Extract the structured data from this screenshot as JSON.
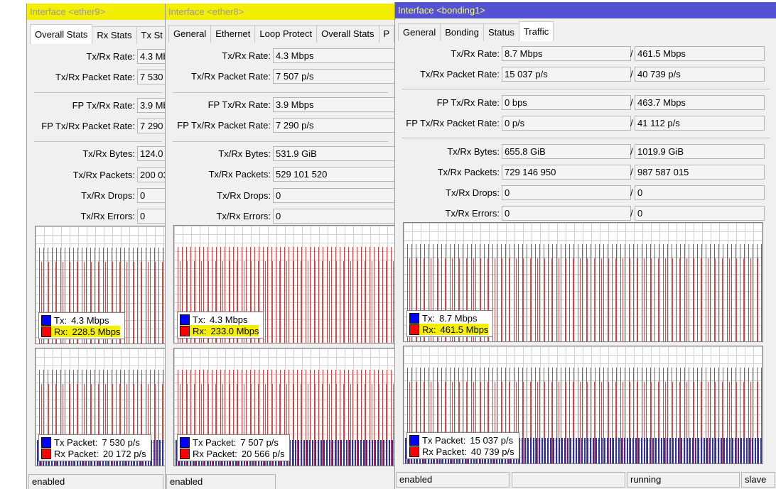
{
  "windows": [
    {
      "title": "Interface <ether9>",
      "tabs": [
        "Overall Stats",
        "Rx Stats",
        "Tx St"
      ],
      "fields": [
        {
          "label": "Tx/Rx Rate:",
          "values": [
            "4.3 Mb"
          ]
        },
        {
          "label": "Tx/Rx Packet Rate:",
          "values": [
            "7 530 p"
          ]
        },
        {
          "label": "FP Tx/Rx Rate:",
          "values": [
            "3.9 Mb"
          ]
        },
        {
          "label": "FP Tx/Rx Packet Rate:",
          "values": [
            "7 290 p"
          ]
        },
        {
          "label": "Tx/Rx Bytes:",
          "values": [
            "124.0 G"
          ]
        },
        {
          "label": "Tx/Rx Packets:",
          "values": [
            "200 03"
          ]
        },
        {
          "label": "Tx/Rx Drops:",
          "values": [
            "0"
          ]
        },
        {
          "label": "Tx/Rx Errors:",
          "values": [
            "0"
          ]
        }
      ],
      "graphs": [
        {
          "legend": [
            {
              "label": "Tx:",
              "value": "4.3 Mbps"
            },
            {
              "label": "Rx:",
              "value": "228.5 Mbps"
            }
          ]
        },
        {
          "legend": [
            {
              "label": "Tx Packet:",
              "value": "7 530 p/s"
            },
            {
              "label": "Rx Packet:",
              "value": "20 172 p/s"
            }
          ]
        }
      ],
      "status": [
        "enabled"
      ]
    },
    {
      "title": "Interface <ether8>",
      "tabs": [
        "General",
        "Ethernet",
        "Loop Protect",
        "Overall Stats",
        "P"
      ],
      "fields": [
        {
          "label": "Tx/Rx Rate:",
          "values": [
            "4.3 Mbps"
          ]
        },
        {
          "label": "Tx/Rx Packet Rate:",
          "values": [
            "7 507 p/s"
          ]
        },
        {
          "label": "FP Tx/Rx Rate:",
          "values": [
            "3.9 Mbps"
          ]
        },
        {
          "label": "FP Tx/Rx Packet Rate:",
          "values": [
            "7 290 p/s"
          ]
        },
        {
          "label": "Tx/Rx Bytes:",
          "values": [
            "531.9 GiB"
          ]
        },
        {
          "label": "Tx/Rx Packets:",
          "values": [
            "529 101 520"
          ]
        },
        {
          "label": "Tx/Rx Drops:",
          "values": [
            "0"
          ]
        },
        {
          "label": "Tx/Rx Errors:",
          "values": [
            "0"
          ]
        }
      ],
      "graphs": [
        {
          "legend": [
            {
              "label": "Tx:",
              "value": "4.3 Mbps"
            },
            {
              "label": "Rx:",
              "value": "233.0 Mbps"
            }
          ]
        },
        {
          "legend": [
            {
              "label": "Tx Packet:",
              "value": "7 507 p/s"
            },
            {
              "label": "Rx Packet:",
              "value": "20 566 p/s"
            }
          ]
        }
      ],
      "status": [
        "enabled"
      ]
    },
    {
      "title": "Interface <bonding1>",
      "tabs": [
        "General",
        "Bonding",
        "Status",
        "Traffic"
      ],
      "separator": "/",
      "fields": [
        {
          "label": "Tx/Rx Rate:",
          "values": [
            "8.7 Mbps",
            "461.5 Mbps"
          ]
        },
        {
          "label": "Tx/Rx Packet Rate:",
          "values": [
            "15 037 p/s",
            "40 739 p/s"
          ]
        },
        {
          "label": "FP Tx/Rx Rate:",
          "values": [
            "0 bps",
            "463.7 Mbps"
          ]
        },
        {
          "label": "FP Tx/Rx Packet Rate:",
          "values": [
            "0 p/s",
            "41 112 p/s"
          ]
        },
        {
          "label": "Tx/Rx Bytes:",
          "values": [
            "655.8 GiB",
            "1019.9 GiB"
          ]
        },
        {
          "label": "Tx/Rx Packets:",
          "values": [
            "729 146 950",
            "987 587 015"
          ]
        },
        {
          "label": "Tx/Rx Drops:",
          "values": [
            "0",
            "0"
          ]
        },
        {
          "label": "Tx/Rx Errors:",
          "values": [
            "0",
            "0"
          ]
        }
      ],
      "graphs": [
        {
          "legend": [
            {
              "label": "Tx:",
              "value": "8.7 Mbps"
            },
            {
              "label": "Rx:",
              "value": "461.5 Mbps"
            }
          ]
        },
        {
          "legend": [
            {
              "label": "Tx Packet:",
              "value": "15 037 p/s"
            },
            {
              "label": "Rx Packet:",
              "value": "40 739 p/s"
            }
          ]
        }
      ],
      "status": [
        "enabled",
        "running",
        "slave"
      ]
    }
  ]
}
